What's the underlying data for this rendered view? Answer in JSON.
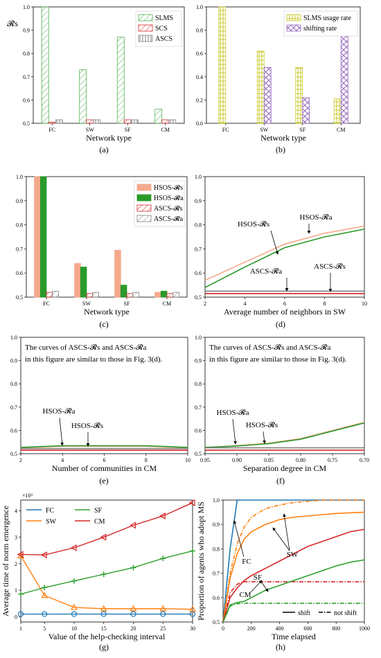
{
  "chart_data": [
    {
      "id": "a",
      "type": "bar",
      "panel_label": "(a)",
      "ylabel": "𝓡s",
      "xlabel": "Network type",
      "categories": [
        "FC",
        "SW",
        "SF",
        "CM"
      ],
      "ylim": [
        0.5,
        1.0
      ],
      "yticks": [
        "0.5",
        "0.6",
        "0.7",
        "0.8",
        "0.9",
        "1.0"
      ],
      "legend_position": "top-right",
      "series": [
        {
          "name": "SLMS",
          "values": [
            1.0,
            0.73,
            0.87,
            0.56
          ],
          "color": "#4daf4a",
          "pattern": "diag"
        },
        {
          "name": "SCS",
          "values": [
            0.505,
            0.515,
            0.515,
            0.515
          ],
          "color": "#d62728",
          "pattern": "diag"
        },
        {
          "name": "ASCS",
          "values": [
            0.515,
            0.515,
            0.515,
            0.515
          ],
          "color": "#7f7f7f",
          "pattern": "vert"
        }
      ]
    },
    {
      "id": "b",
      "type": "bar",
      "panel_label": "(b)",
      "xlabel": "Network type",
      "categories": [
        "FC",
        "SW",
        "SF",
        "CM"
      ],
      "ylim": [
        0.0,
        1.0
      ],
      "yticks": [
        "0.0",
        "0.2",
        "0.4",
        "0.6",
        "0.8",
        "1.0"
      ],
      "legend_position": "top-right",
      "series": [
        {
          "name": "SLMS usage rate",
          "values": [
            1.0,
            0.62,
            0.48,
            0.21
          ],
          "color": "#c9c92a",
          "pattern": "grid"
        },
        {
          "name": "shifting rate",
          "values": [
            0.0,
            0.48,
            0.22,
            0.81
          ],
          "color": "#9467bd",
          "pattern": "cross"
        }
      ]
    },
    {
      "id": "c",
      "type": "bar",
      "panel_label": "(c)",
      "xlabel": "Network type",
      "categories": [
        "FC",
        "SW",
        "SF",
        "CM"
      ],
      "ylim": [
        0.5,
        1.0
      ],
      "yticks": [
        "0.5",
        "0.6",
        "0.7",
        "0.8",
        "0.9",
        "1.0"
      ],
      "legend_position": "top-right",
      "series": [
        {
          "name": "HSOS-𝓡s",
          "values": [
            1.0,
            0.64,
            0.695,
            0.52
          ],
          "color": "#f5a98c",
          "pattern": "solid"
        },
        {
          "name": "HSOS-𝓡a",
          "values": [
            1.0,
            0.625,
            0.55,
            0.525
          ],
          "color": "#2a9a2a",
          "pattern": "solid"
        },
        {
          "name": "ASCS-𝓡s",
          "values": [
            0.52,
            0.515,
            0.515,
            0.515
          ],
          "color": "#d62728",
          "pattern": "diag"
        },
        {
          "name": "ASCS-𝓡a",
          "values": [
            0.525,
            0.52,
            0.52,
            0.52
          ],
          "color": "#7f7f7f",
          "pattern": "diag"
        }
      ]
    },
    {
      "id": "d",
      "type": "line",
      "panel_label": "(d)",
      "xlabel": "Average number of neighbors in SW",
      "xlim": [
        2,
        10
      ],
      "ylim": [
        0.5,
        1.0
      ],
      "xticks": [
        "2",
        "4",
        "6",
        "8",
        "10"
      ],
      "x": [
        2,
        4,
        6,
        8,
        10
      ],
      "series": [
        {
          "name": "HSOS-𝓡s",
          "values": [
            0.57,
            0.645,
            0.72,
            0.765,
            0.795
          ],
          "color": "#f5a98c"
        },
        {
          "name": "HSOS-𝓡a",
          "values": [
            0.54,
            0.625,
            0.705,
            0.75,
            0.782
          ],
          "color": "#2a9a2a"
        },
        {
          "name": "ASCS-𝓡a",
          "values": [
            0.525,
            0.525,
            0.525,
            0.525,
            0.525
          ],
          "color": "#7f7f7f"
        },
        {
          "name": "ASCS-𝓡s",
          "values": [
            0.515,
            0.515,
            0.515,
            0.515,
            0.515
          ],
          "color": "#d62728"
        }
      ],
      "annotations": [
        "HSOS-𝓡s",
        "HSOS-𝓡a",
        "ASCS-𝓡a",
        "ASCS-𝓡s"
      ]
    },
    {
      "id": "e",
      "type": "line",
      "panel_label": "(e)",
      "xlabel": "Number of communities in CM",
      "xlim": [
        2,
        10
      ],
      "ylim": [
        0.5,
        1.0
      ],
      "xticks": [
        "2",
        "4",
        "6",
        "8",
        "10"
      ],
      "x": [
        2,
        4,
        6,
        8,
        10
      ],
      "note_line1": "The curves of ASCS-𝓡s and ASCS-𝓡a",
      "note_line2": "in this figure are similar to those in Fig. 3(d).",
      "series": [
        {
          "name": "HSOS-𝓡s",
          "values": [
            0.525,
            0.532,
            0.532,
            0.532,
            0.525
          ],
          "color": "#f5a98c"
        },
        {
          "name": "HSOS-𝓡a",
          "values": [
            0.527,
            0.534,
            0.534,
            0.534,
            0.527
          ],
          "color": "#2a9a2a"
        },
        {
          "name": "ASCS-𝓡a",
          "values": [
            0.522,
            0.522,
            0.522,
            0.522,
            0.522
          ],
          "color": "#7f7f7f"
        },
        {
          "name": "ASCS-𝓡s",
          "values": [
            0.515,
            0.515,
            0.515,
            0.515,
            0.515
          ],
          "color": "#d62728"
        }
      ],
      "annotations": [
        "HSOS-𝓡a",
        "HSOS-𝓡s"
      ]
    },
    {
      "id": "f",
      "type": "line",
      "panel_label": "(f)",
      "xlabel": "Separation degree in CM",
      "xlim": [
        0.95,
        0.7
      ],
      "ylim": [
        0.5,
        1.0
      ],
      "xticks": [
        "0.95",
        "0.90",
        "0.85",
        "0.80",
        "0.75",
        "0.70"
      ],
      "x": [
        0.95,
        0.9,
        0.85,
        0.8,
        0.75,
        0.7
      ],
      "note_line1": "The curves of ASCS-𝓡s and ASCS-𝓡a",
      "note_line2": "in this figure are similar to those in Fig. 3(d).",
      "series": [
        {
          "name": "HSOS-𝓡s",
          "values": [
            0.525,
            0.535,
            0.545,
            0.565,
            0.6,
            0.635
          ],
          "color": "#f5a98c"
        },
        {
          "name": "HSOS-𝓡a",
          "values": [
            0.527,
            0.533,
            0.543,
            0.562,
            0.597,
            0.632
          ],
          "color": "#2a9a2a"
        },
        {
          "name": "ASCS-𝓡a",
          "values": [
            0.525,
            0.525,
            0.525,
            0.525,
            0.525,
            0.525
          ],
          "color": "#7f7f7f"
        },
        {
          "name": "ASCS-𝓡s",
          "values": [
            0.515,
            0.515,
            0.515,
            0.515,
            0.515,
            0.515
          ],
          "color": "#d62728"
        }
      ],
      "annotations": [
        "HSOS-𝓡a",
        "HSOS-𝓡s"
      ]
    },
    {
      "id": "g",
      "type": "line",
      "panel_label": "(g)",
      "ylabel": "Average time of norm emergence",
      "xlabel": "Value of the help-checking interval",
      "scale_label": "×10³",
      "xlim": [
        1,
        30
      ],
      "ylim": [
        -0.2,
        4.4
      ],
      "xticks": [
        "1",
        "5",
        "10",
        "15",
        "20",
        "25",
        "30"
      ],
      "yticks": [
        "0",
        "1",
        "2",
        "3",
        "4"
      ],
      "x": [
        1,
        5,
        10,
        15,
        20,
        25,
        30
      ],
      "legend_position": "top-left",
      "series": [
        {
          "name": "FC",
          "values": [
            0.1,
            0.1,
            0.1,
            0.1,
            0.1,
            0.1,
            0.1
          ],
          "color": "#1f77b4",
          "marker": "circle"
        },
        {
          "name": "SW",
          "values": [
            2.3,
            0.8,
            0.35,
            0.3,
            0.3,
            0.3,
            0.28
          ],
          "color": "#ff7f0e",
          "marker": "triangle-up"
        },
        {
          "name": "SF",
          "values": [
            0.85,
            1.1,
            1.35,
            1.6,
            1.85,
            2.2,
            2.48
          ],
          "color": "#2ca02c",
          "marker": "plus"
        },
        {
          "name": "CM",
          "values": [
            2.35,
            2.33,
            2.6,
            3.0,
            3.45,
            3.8,
            4.3
          ],
          "color": "#d62728",
          "marker": "triangle-left"
        }
      ]
    },
    {
      "id": "h",
      "type": "line",
      "panel_label": "(h)",
      "ylabel": "Proportion of agents who adopt MS",
      "xlabel": "Time elapsed",
      "xlim": [
        0,
        1000
      ],
      "ylim": [
        0.5,
        1.0
      ],
      "xticks": [
        "0",
        "200",
        "400",
        "600",
        "800",
        "1000"
      ],
      "yticks": [
        "0.5",
        "0.6",
        "0.7",
        "0.8",
        "0.9",
        "1.0"
      ],
      "legend_position": "bottom-right",
      "legend_styles": [
        "shift",
        "not shift"
      ],
      "x": [
        0,
        50,
        100,
        150,
        200,
        300,
        400,
        500,
        600,
        700,
        800,
        900,
        1000
      ],
      "series": [
        {
          "name": "FC",
          "style": "shift",
          "values": [
            0.5,
            0.8,
            1.0,
            1.0,
            1.0,
            1.0,
            1.0,
            1.0,
            1.0,
            1.0,
            1.0,
            1.0,
            1.0
          ],
          "color": "#1f77b4"
        },
        {
          "name": "SW",
          "style": "shift",
          "values": [
            0.5,
            0.68,
            0.78,
            0.84,
            0.87,
            0.9,
            0.92,
            0.93,
            0.935,
            0.94,
            0.945,
            0.948,
            0.95
          ],
          "color": "#ff7f0e"
        },
        {
          "name": "SW",
          "style": "not shift",
          "values": [
            0.5,
            0.7,
            0.82,
            0.89,
            0.93,
            0.965,
            0.98,
            0.99,
            0.995,
            1.0,
            1.0,
            1.0,
            1.0
          ],
          "color": "#ff7f0e"
        },
        {
          "name": "SF",
          "style": "shift",
          "values": [
            0.5,
            0.6,
            0.64,
            0.67,
            0.69,
            0.72,
            0.75,
            0.78,
            0.81,
            0.83,
            0.85,
            0.87,
            0.88
          ],
          "color": "#d62728"
        },
        {
          "name": "SF",
          "style": "not shift",
          "values": [
            0.5,
            0.62,
            0.655,
            0.665,
            0.665,
            0.665,
            0.665,
            0.665,
            0.665,
            0.665,
            0.665,
            0.665,
            0.665
          ],
          "color": "#d62728"
        },
        {
          "name": "CM",
          "style": "shift",
          "values": [
            0.5,
            0.57,
            0.58,
            0.585,
            0.6,
            0.63,
            0.65,
            0.67,
            0.69,
            0.71,
            0.73,
            0.745,
            0.755
          ],
          "color": "#2ca02c"
        },
        {
          "name": "CM",
          "style": "not shift",
          "values": [
            0.5,
            0.565,
            0.575,
            0.577,
            0.577,
            0.577,
            0.577,
            0.577,
            0.577,
            0.577,
            0.577,
            0.577,
            0.577
          ],
          "color": "#2ca02c"
        }
      ],
      "annotations": [
        "FC",
        "SW",
        "SF",
        "CM"
      ]
    }
  ]
}
